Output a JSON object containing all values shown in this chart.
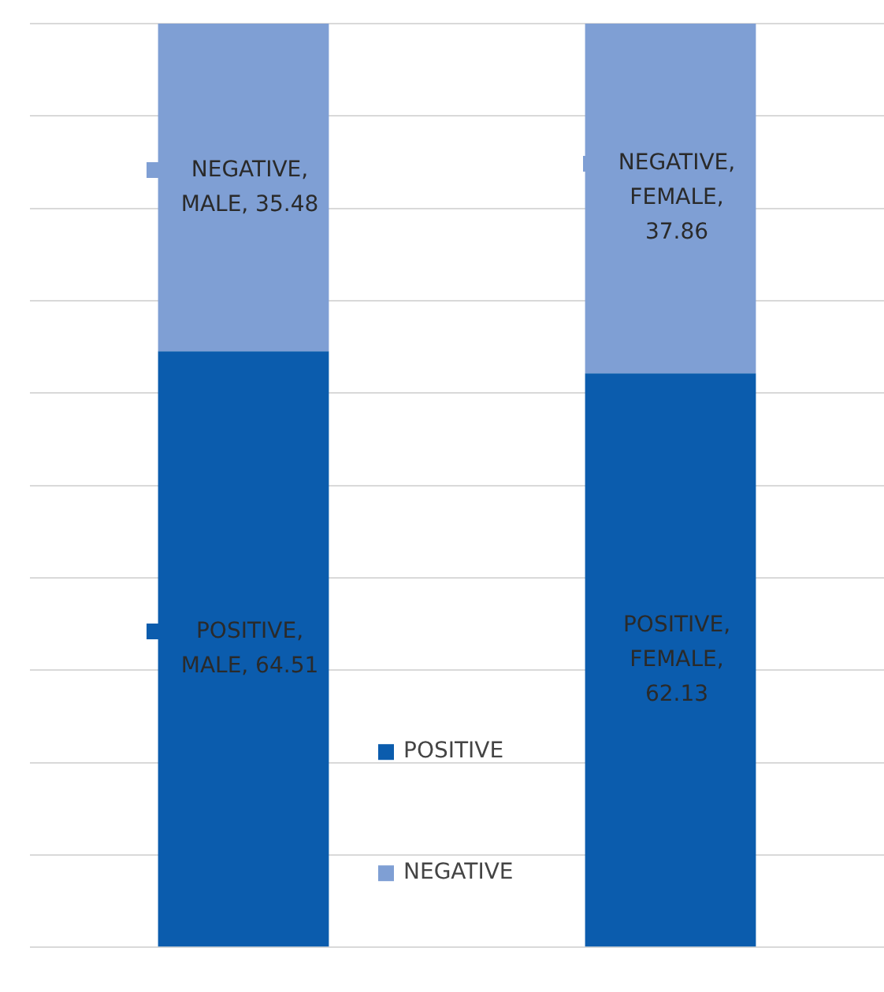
{
  "chart_data": {
    "type": "bar",
    "stacked": true,
    "categories": [
      null,
      null
    ],
    "series": [
      {
        "name": "POSITIVE",
        "color": "#0b5cad",
        "values": [
          64.51,
          62.13
        ],
        "value_labels": [
          "POSITIVE, MALE, 64.51",
          "POSITIVE, FEMALE, 62.13"
        ]
      },
      {
        "name": "NEGATIVE",
        "color": "#7f9fd4",
        "values": [
          35.48,
          37.86
        ],
        "value_labels": [
          "NEGATIVE, MALE, 35.48",
          "NEGATIVE, FEMALE, 37.86"
        ]
      }
    ],
    "ylim": [
      0,
      100
    ],
    "yticks": [
      {
        "value": 0,
        "label": null
      },
      {
        "value": 10,
        "label": null
      },
      {
        "value": 20,
        "label": null
      },
      {
        "value": 30,
        "label": null
      },
      {
        "value": 40,
        "label": null
      },
      {
        "value": 50,
        "label": null
      },
      {
        "value": 60,
        "label": null
      },
      {
        "value": 70,
        "label": null
      },
      {
        "value": 80,
        "label": null
      },
      {
        "value": 90,
        "label": null
      },
      {
        "value": 100,
        "label": null
      }
    ],
    "grid": "y",
    "legend": "bottom"
  }
}
